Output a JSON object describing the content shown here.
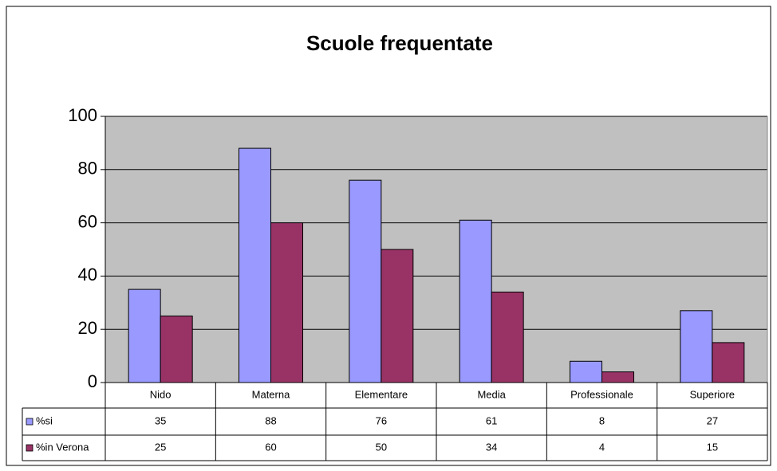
{
  "chart_data": {
    "type": "bar",
    "title": "Scuole frequentate",
    "categories": [
      "Nido",
      "Materna",
      "Elementare",
      "Media",
      "Professionale",
      "Superiore"
    ],
    "series": [
      {
        "name": "%si",
        "color": "#9999ff",
        "values": [
          35,
          88,
          76,
          61,
          8,
          27
        ]
      },
      {
        "name": "%in Verona",
        "color": "#993366",
        "values": [
          25,
          60,
          50,
          34,
          4,
          15
        ]
      }
    ],
    "ylim": [
      0,
      100
    ],
    "yticks": [
      0,
      20,
      40,
      60,
      80,
      100
    ],
    "grid": true,
    "data_table": true
  }
}
